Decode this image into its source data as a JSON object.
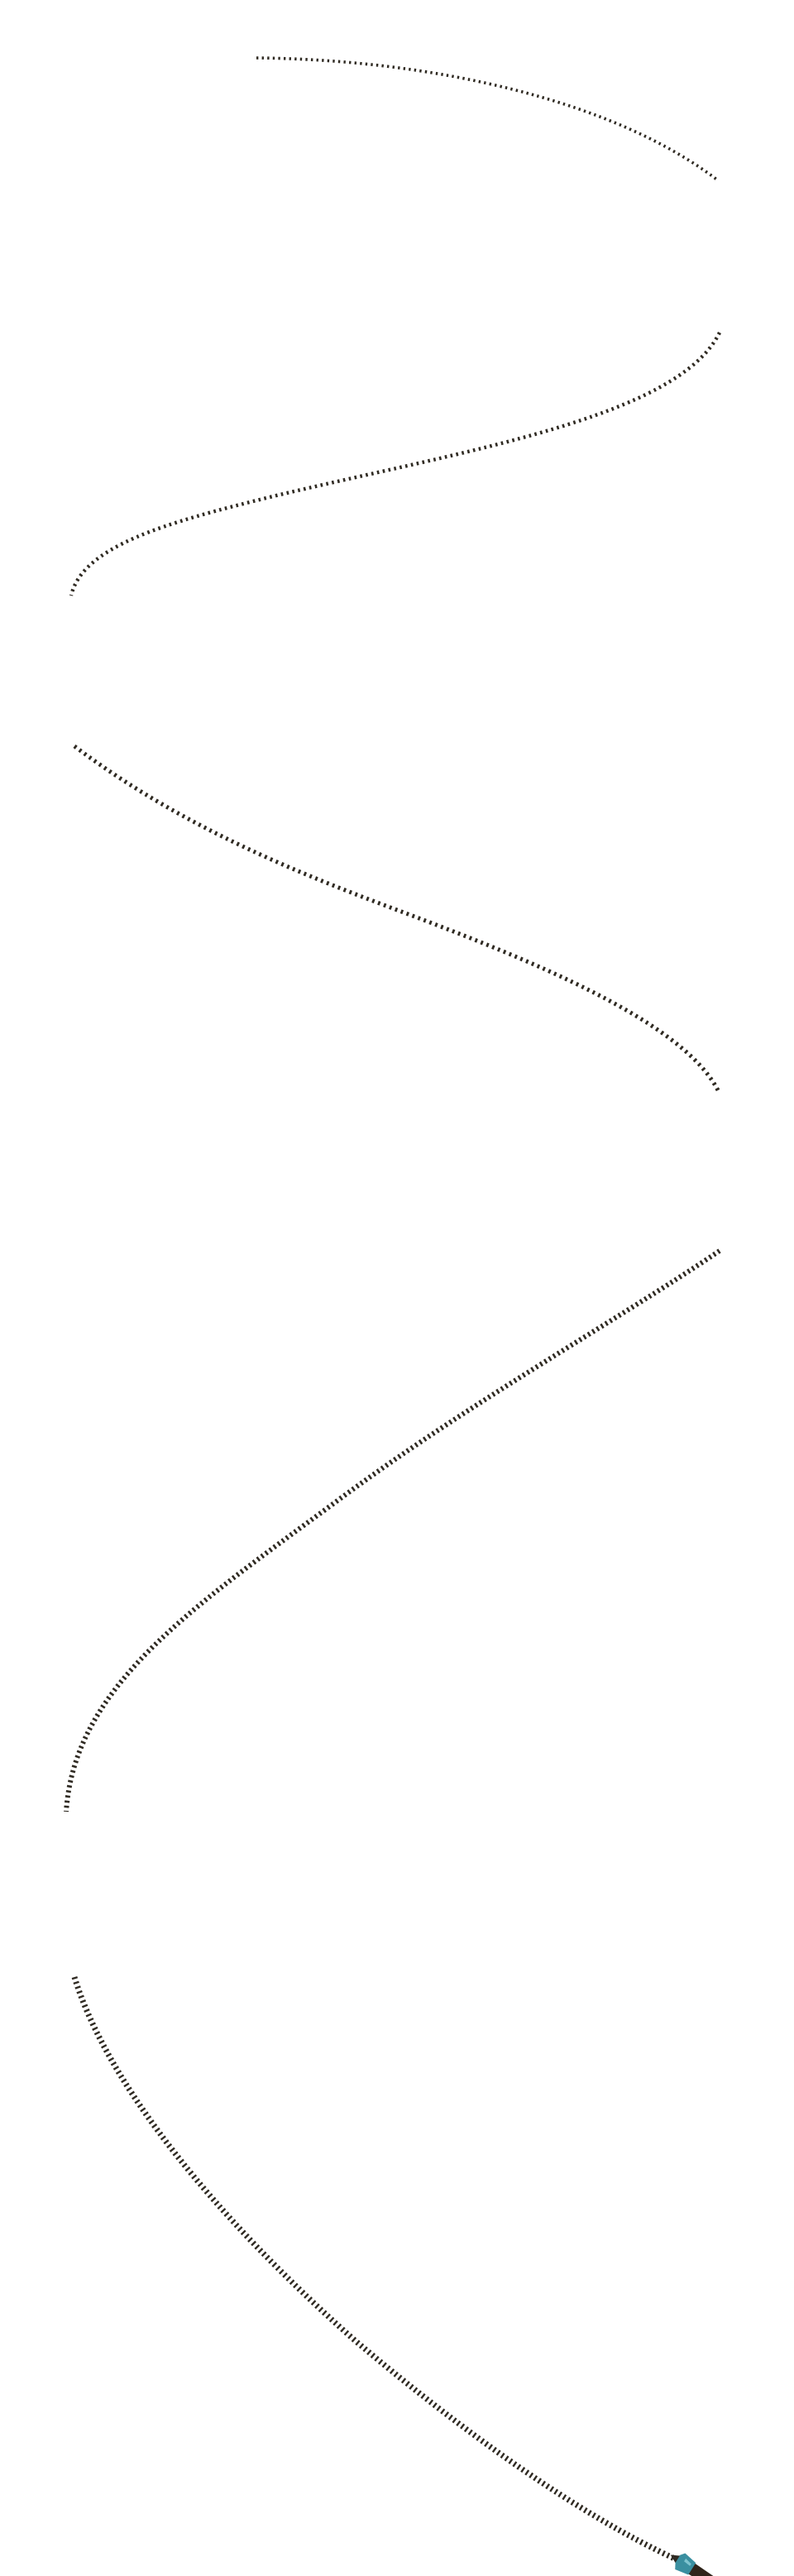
{
  "scene": {
    "background_color": "#ffffff",
    "trail": {
      "stroke_color": "#2f2a22",
      "dash_style": "dotted",
      "segment_count": 6
    },
    "brush_tip": {
      "icon": "paintbrush-tip-icon",
      "handle_color": "#2f241a",
      "ferrule_color": "#3a8fa0",
      "ferrule_highlight_color": "#7fc4cf"
    }
  }
}
